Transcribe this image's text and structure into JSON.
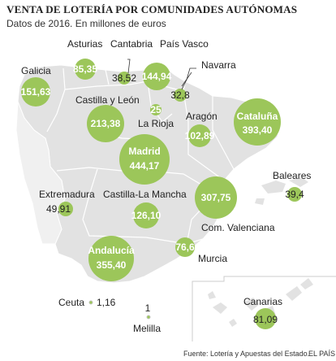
{
  "header": {
    "title": "VENTA DE LOTERÍA POR COMUNIDADES AUTÓNOMAS",
    "subtitle": "Datos de 2016. En millones de euros"
  },
  "regions": [
    {
      "name": "Galicia",
      "value": "151,63"
    },
    {
      "name": "Asturias",
      "value": "85,35"
    },
    {
      "name": "Cantabria",
      "value": "38,52"
    },
    {
      "name": "País Vasco",
      "value": "144,94"
    },
    {
      "name": "Navarra",
      "value": "32,8"
    },
    {
      "name": "Castilla y León",
      "value": "213,38"
    },
    {
      "name": "La Rioja",
      "value": "25"
    },
    {
      "name": "Aragón",
      "value": "102,89"
    },
    {
      "name": "Cataluña",
      "value": "393,40"
    },
    {
      "name": "Madrid",
      "value": "444,17"
    },
    {
      "name": "Extremadura",
      "value": "49,91"
    },
    {
      "name": "Castilla-La Mancha",
      "value": "126,10"
    },
    {
      "name": "Com. Valenciana",
      "value": "307,75"
    },
    {
      "name": "Baleares",
      "value": "39,4"
    },
    {
      "name": "Murcia",
      "value": "76,6"
    },
    {
      "name": "Andalucía",
      "value": "355,40"
    },
    {
      "name": "Ceuta",
      "value": "1,16"
    },
    {
      "name": "Melilla",
      "value": "1"
    },
    {
      "name": "Canarias",
      "value": "81,09"
    }
  ],
  "colors": {
    "bubble": "#9cc65a",
    "land": "#e2e2e2",
    "border": "#ffffff"
  },
  "footer": {
    "source": "Fuente: Lotería y Apuestas del Estado.",
    "brand": "EL PAÍS"
  }
}
